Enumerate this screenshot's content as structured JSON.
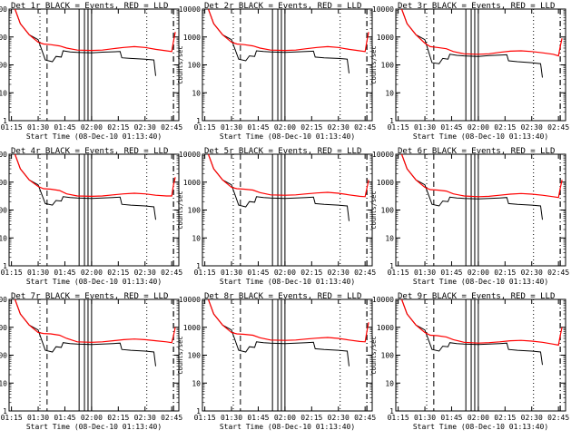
{
  "figure": {
    "xlabel": "Start Time (08-Dec-10 01:13:40)",
    "ylabel": "Counts/sec",
    "x_tick_labels": [
      "01:15",
      "01:30",
      "01:45",
      "02:00",
      "02:15",
      "02:30",
      "02:45"
    ],
    "y_tick_labels": [
      "1",
      "10",
      "100",
      "1000",
      "10000"
    ],
    "colors": {
      "events": "#000000",
      "lld": "#ff0000",
      "background": "#ffffff"
    }
  },
  "chart_data": [
    {
      "type": "line",
      "title": "Det 1r BLACK = Events, RED = LLD",
      "xlabel": "Start Time (08-Dec-10 01:13:40)",
      "ylabel": "Counts/sec",
      "y_scale": "log",
      "ylim": [
        1,
        10000
      ],
      "xlim": [
        "01:13:40",
        "02:49:00"
      ],
      "series": [
        {
          "name": "Events",
          "color": "#000000",
          "x": [
            "01:17",
            "01:20",
            "01:25",
            "01:30",
            "01:34",
            "01:38",
            "01:40",
            "01:43",
            "01:44",
            "01:48",
            "01:52",
            "02:00",
            "02:06",
            "02:12",
            "02:16",
            "02:17",
            "02:22",
            "02:30",
            "02:35",
            "02:36"
          ],
          "values": [
            10000,
            3000,
            1200,
            800,
            150,
            130,
            200,
            190,
            320,
            290,
            280,
            270,
            285,
            295,
            300,
            180,
            170,
            160,
            150,
            40
          ]
        },
        {
          "name": "LLD",
          "color": "#ff0000",
          "x": [
            "01:17",
            "01:20",
            "01:25",
            "01:30",
            "01:33",
            "01:37",
            "01:42",
            "01:46",
            "01:52",
            "02:00",
            "02:06",
            "02:12",
            "02:18",
            "02:24",
            "02:30",
            "02:36",
            "02:42",
            "02:45",
            "02:46",
            "02:47"
          ],
          "values": [
            10000,
            3000,
            1200,
            650,
            560,
            530,
            480,
            400,
            340,
            330,
            340,
            380,
            420,
            450,
            420,
            360,
            320,
            300,
            700,
            1500
          ]
        }
      ]
    },
    {
      "type": "line",
      "title": "Det 2r BLACK = Events, RED = LLD",
      "xlabel": "Start Time (08-Dec-10 01:13:40)",
      "ylabel": "Counts/sec",
      "y_scale": "log",
      "ylim": [
        1,
        10000
      ],
      "xlim": [
        "01:13:40",
        "02:49:00"
      ],
      "series": [
        {
          "name": "Events",
          "color": "#000000",
          "x": [
            "01:17",
            "01:20",
            "01:25",
            "01:30",
            "01:34",
            "01:38",
            "01:40",
            "01:43",
            "01:44",
            "01:48",
            "01:52",
            "02:00",
            "02:06",
            "02:12",
            "02:16",
            "02:17",
            "02:22",
            "02:30",
            "02:35",
            "02:36"
          ],
          "values": [
            10000,
            3000,
            1200,
            800,
            160,
            140,
            210,
            200,
            320,
            300,
            290,
            280,
            290,
            300,
            310,
            190,
            180,
            170,
            160,
            50
          ]
        },
        {
          "name": "LLD",
          "color": "#ff0000",
          "x": [
            "01:17",
            "01:20",
            "01:25",
            "01:30",
            "01:33",
            "01:37",
            "01:42",
            "01:46",
            "01:52",
            "02:00",
            "02:06",
            "02:12",
            "02:18",
            "02:24",
            "02:30",
            "02:36",
            "02:42",
            "02:45",
            "02:46",
            "02:47"
          ],
          "values": [
            10000,
            3000,
            1200,
            650,
            560,
            530,
            480,
            400,
            340,
            330,
            340,
            380,
            420,
            450,
            420,
            360,
            320,
            300,
            700,
            1500
          ]
        }
      ]
    },
    {
      "type": "line",
      "title": "Det 3r BLACK = Events, RED = LLD",
      "xlabel": "Start Time (08-Dec-10 01:13:40)",
      "ylabel": "Counts/sec",
      "y_scale": "log",
      "ylim": [
        1,
        10000
      ],
      "xlim": [
        "01:13:40",
        "02:49:00"
      ],
      "series": [
        {
          "name": "Events",
          "color": "#000000",
          "x": [
            "01:17",
            "01:20",
            "01:25",
            "01:30",
            "01:34",
            "01:38",
            "01:40",
            "01:43",
            "01:44",
            "01:48",
            "01:52",
            "02:00",
            "02:06",
            "02:12",
            "02:16",
            "02:17",
            "02:22",
            "02:30",
            "02:35",
            "02:36"
          ],
          "values": [
            10000,
            3000,
            1200,
            800,
            120,
            110,
            170,
            160,
            240,
            220,
            210,
            200,
            215,
            225,
            230,
            140,
            130,
            120,
            110,
            35
          ]
        },
        {
          "name": "LLD",
          "color": "#ff0000",
          "x": [
            "01:17",
            "01:20",
            "01:25",
            "01:30",
            "01:33",
            "01:37",
            "01:42",
            "01:46",
            "01:52",
            "02:00",
            "02:06",
            "02:12",
            "02:18",
            "02:24",
            "02:30",
            "02:36",
            "02:42",
            "02:45",
            "02:46",
            "02:47"
          ],
          "values": [
            10000,
            3000,
            1200,
            600,
            450,
            420,
            380,
            300,
            250,
            240,
            250,
            280,
            310,
            320,
            300,
            270,
            240,
            210,
            450,
            900
          ]
        }
      ]
    },
    {
      "type": "line",
      "title": "Det 4r BLACK = Events, RED = LLD",
      "xlabel": "Start Time (08-Dec-10 01:13:40)",
      "ylabel": "Counts/sec",
      "y_scale": "log",
      "ylim": [
        1,
        10000
      ],
      "xlim": [
        "01:13:40",
        "02:49:00"
      ],
      "series": [
        {
          "name": "Events",
          "color": "#000000",
          "x": [
            "01:17",
            "01:20",
            "01:25",
            "01:30",
            "01:34",
            "01:38",
            "01:40",
            "01:43",
            "01:44",
            "01:48",
            "01:52",
            "02:00",
            "02:06",
            "02:12",
            "02:16",
            "02:17",
            "02:22",
            "02:30",
            "02:35",
            "02:36"
          ],
          "values": [
            10000,
            3000,
            1200,
            800,
            170,
            150,
            220,
            210,
            300,
            280,
            270,
            260,
            270,
            280,
            290,
            160,
            150,
            140,
            130,
            45
          ]
        },
        {
          "name": "LLD",
          "color": "#ff0000",
          "x": [
            "01:17",
            "01:20",
            "01:25",
            "01:30",
            "01:33",
            "01:37",
            "01:42",
            "01:46",
            "01:52",
            "02:00",
            "02:06",
            "02:12",
            "02:18",
            "02:24",
            "02:30",
            "02:36",
            "02:42",
            "02:45",
            "02:46",
            "02:47"
          ],
          "values": [
            10000,
            3000,
            1200,
            700,
            580,
            560,
            500,
            380,
            320,
            310,
            320,
            350,
            380,
            400,
            380,
            340,
            320,
            320,
            800,
            1500
          ]
        }
      ]
    },
    {
      "type": "line",
      "title": "Det 5r BLACK = Events, RED = LLD",
      "xlabel": "Start Time (08-Dec-10 01:13:40)",
      "ylabel": "Counts/sec",
      "y_scale": "log",
      "ylim": [
        1,
        10000
      ],
      "xlim": [
        "01:13:40",
        "02:49:00"
      ],
      "series": [
        {
          "name": "Events",
          "color": "#000000",
          "x": [
            "01:17",
            "01:20",
            "01:25",
            "01:30",
            "01:34",
            "01:38",
            "01:40",
            "01:43",
            "01:44",
            "01:48",
            "01:52",
            "02:00",
            "02:06",
            "02:12",
            "02:16",
            "02:17",
            "02:22",
            "02:30",
            "02:35",
            "02:36"
          ],
          "values": [
            10000,
            3000,
            1200,
            800,
            150,
            130,
            200,
            190,
            300,
            280,
            270,
            260,
            270,
            280,
            290,
            170,
            160,
            150,
            140,
            40
          ]
        },
        {
          "name": "LLD",
          "color": "#ff0000",
          "x": [
            "01:17",
            "01:20",
            "01:25",
            "01:30",
            "01:33",
            "01:37",
            "01:42",
            "01:46",
            "01:52",
            "02:00",
            "02:06",
            "02:12",
            "02:18",
            "02:24",
            "02:30",
            "02:36",
            "02:42",
            "02:45",
            "02:46",
            "02:47"
          ],
          "values": [
            10000,
            3000,
            1200,
            650,
            580,
            560,
            520,
            420,
            350,
            340,
            350,
            380,
            410,
            430,
            400,
            350,
            310,
            300,
            600,
            1200
          ]
        }
      ]
    },
    {
      "type": "line",
      "title": "Det 6r BLACK = Events, RED = LLD",
      "xlabel": "Start Time (08-Dec-10 01:13:40)",
      "ylabel": "Counts/sec",
      "y_scale": "log",
      "ylim": [
        1,
        10000
      ],
      "xlim": [
        "01:13:40",
        "02:49:00"
      ],
      "series": [
        {
          "name": "Events",
          "color": "#000000",
          "x": [
            "01:17",
            "01:20",
            "01:25",
            "01:30",
            "01:34",
            "01:38",
            "01:40",
            "01:43",
            "01:44",
            "01:48",
            "01:52",
            "02:00",
            "02:06",
            "02:12",
            "02:16",
            "02:17",
            "02:22",
            "02:30",
            "02:35",
            "02:36"
          ],
          "values": [
            10000,
            3000,
            1200,
            800,
            160,
            140,
            210,
            200,
            290,
            270,
            260,
            250,
            260,
            270,
            280,
            170,
            160,
            150,
            140,
            45
          ]
        },
        {
          "name": "LLD",
          "color": "#ff0000",
          "x": [
            "01:17",
            "01:20",
            "01:25",
            "01:30",
            "01:33",
            "01:37",
            "01:42",
            "01:46",
            "01:52",
            "02:00",
            "02:06",
            "02:12",
            "02:18",
            "02:24",
            "02:30",
            "02:36",
            "02:42",
            "02:45",
            "02:46",
            "02:47"
          ],
          "values": [
            10000,
            3000,
            1200,
            650,
            540,
            520,
            480,
            380,
            320,
            300,
            310,
            340,
            370,
            390,
            370,
            340,
            300,
            280,
            600,
            1200
          ]
        }
      ]
    },
    {
      "type": "line",
      "title": "Det 7r BLACK = Events, RED = LLD",
      "xlabel": "Start Time (08-Dec-10 01:13:40)",
      "ylabel": "Counts/sec",
      "y_scale": "log",
      "ylim": [
        1,
        10000
      ],
      "xlim": [
        "01:13:40",
        "02:49:00"
      ],
      "series": [
        {
          "name": "Events",
          "color": "#000000",
          "x": [
            "01:17",
            "01:20",
            "01:25",
            "01:30",
            "01:34",
            "01:38",
            "01:40",
            "01:43",
            "01:44",
            "01:48",
            "01:52",
            "02:00",
            "02:06",
            "02:12",
            "02:16",
            "02:17",
            "02:22",
            "02:30",
            "02:35",
            "02:36"
          ],
          "values": [
            10000,
            3000,
            1200,
            800,
            150,
            130,
            200,
            190,
            280,
            260,
            250,
            240,
            250,
            260,
            270,
            160,
            150,
            140,
            130,
            40
          ]
        },
        {
          "name": "LLD",
          "color": "#ff0000",
          "x": [
            "01:17",
            "01:20",
            "01:25",
            "01:30",
            "01:33",
            "01:37",
            "01:42",
            "01:46",
            "01:52",
            "02:00",
            "02:06",
            "02:12",
            "02:18",
            "02:24",
            "02:30",
            "02:36",
            "02:42",
            "02:45",
            "02:46",
            "02:47"
          ],
          "values": [
            10000,
            3000,
            1200,
            650,
            600,
            580,
            520,
            400,
            300,
            290,
            300,
            330,
            360,
            380,
            360,
            330,
            300,
            280,
            500,
            1000
          ]
        }
      ]
    },
    {
      "type": "line",
      "title": "Det 8r BLACK = Events, RED = LLD",
      "xlabel": "Start Time (08-Dec-10 01:13:40)",
      "ylabel": "Counts/sec",
      "y_scale": "log",
      "ylim": [
        1,
        10000
      ],
      "xlim": [
        "01:13:40",
        "02:49:00"
      ],
      "series": [
        {
          "name": "Events",
          "color": "#000000",
          "x": [
            "01:17",
            "01:20",
            "01:25",
            "01:30",
            "01:34",
            "01:38",
            "01:40",
            "01:43",
            "01:44",
            "01:48",
            "01:52",
            "02:00",
            "02:06",
            "02:12",
            "02:16",
            "02:17",
            "02:22",
            "02:30",
            "02:35",
            "02:36"
          ],
          "values": [
            10000,
            3000,
            1200,
            800,
            150,
            130,
            200,
            190,
            300,
            280,
            270,
            260,
            270,
            280,
            290,
            170,
            160,
            150,
            140,
            40
          ]
        },
        {
          "name": "LLD",
          "color": "#ff0000",
          "x": [
            "01:17",
            "01:20",
            "01:25",
            "01:30",
            "01:33",
            "01:37",
            "01:42",
            "01:46",
            "01:52",
            "02:00",
            "02:06",
            "02:12",
            "02:18",
            "02:24",
            "02:30",
            "02:36",
            "02:42",
            "02:45",
            "02:46",
            "02:47"
          ],
          "values": [
            10000,
            3000,
            1200,
            650,
            580,
            560,
            520,
            420,
            350,
            340,
            350,
            380,
            410,
            430,
            400,
            350,
            310,
            300,
            700,
            1500
          ]
        }
      ]
    },
    {
      "type": "line",
      "title": "Det 9r BLACK = Events, RED = LLD",
      "xlabel": "Start Time (08-Dec-10 01:13:40)",
      "ylabel": "Counts/sec",
      "y_scale": "log",
      "ylim": [
        1,
        10000
      ],
      "xlim": [
        "01:13:40",
        "02:49:00"
      ],
      "series": [
        {
          "name": "Events",
          "color": "#000000",
          "x": [
            "01:17",
            "01:20",
            "01:25",
            "01:30",
            "01:34",
            "01:38",
            "01:40",
            "01:43",
            "01:44",
            "01:48",
            "01:52",
            "02:00",
            "02:06",
            "02:12",
            "02:16",
            "02:17",
            "02:22",
            "02:30",
            "02:35",
            "02:36"
          ],
          "values": [
            10000,
            3000,
            1200,
            800,
            160,
            140,
            210,
            200,
            280,
            260,
            250,
            240,
            250,
            260,
            270,
            160,
            150,
            140,
            130,
            45
          ]
        },
        {
          "name": "LLD",
          "color": "#ff0000",
          "x": [
            "01:17",
            "01:20",
            "01:25",
            "01:30",
            "01:33",
            "01:37",
            "01:42",
            "01:46",
            "01:52",
            "02:00",
            "02:06",
            "02:12",
            "02:18",
            "02:24",
            "02:30",
            "02:36",
            "02:42",
            "02:45",
            "02:46",
            "02:47"
          ],
          "values": [
            10000,
            3000,
            1200,
            650,
            520,
            500,
            450,
            360,
            290,
            270,
            280,
            300,
            330,
            340,
            320,
            290,
            250,
            230,
            500,
            1000
          ]
        }
      ]
    }
  ],
  "markers": {
    "dotted": [
      "01:31",
      "02:31"
    ],
    "dashed": [
      "01:35"
    ],
    "dash_dot": [
      "02:46"
    ],
    "box_pairs": [
      [
        "01:53",
        "01:56"
      ],
      [
        "01:58",
        "02:00"
      ]
    ]
  }
}
